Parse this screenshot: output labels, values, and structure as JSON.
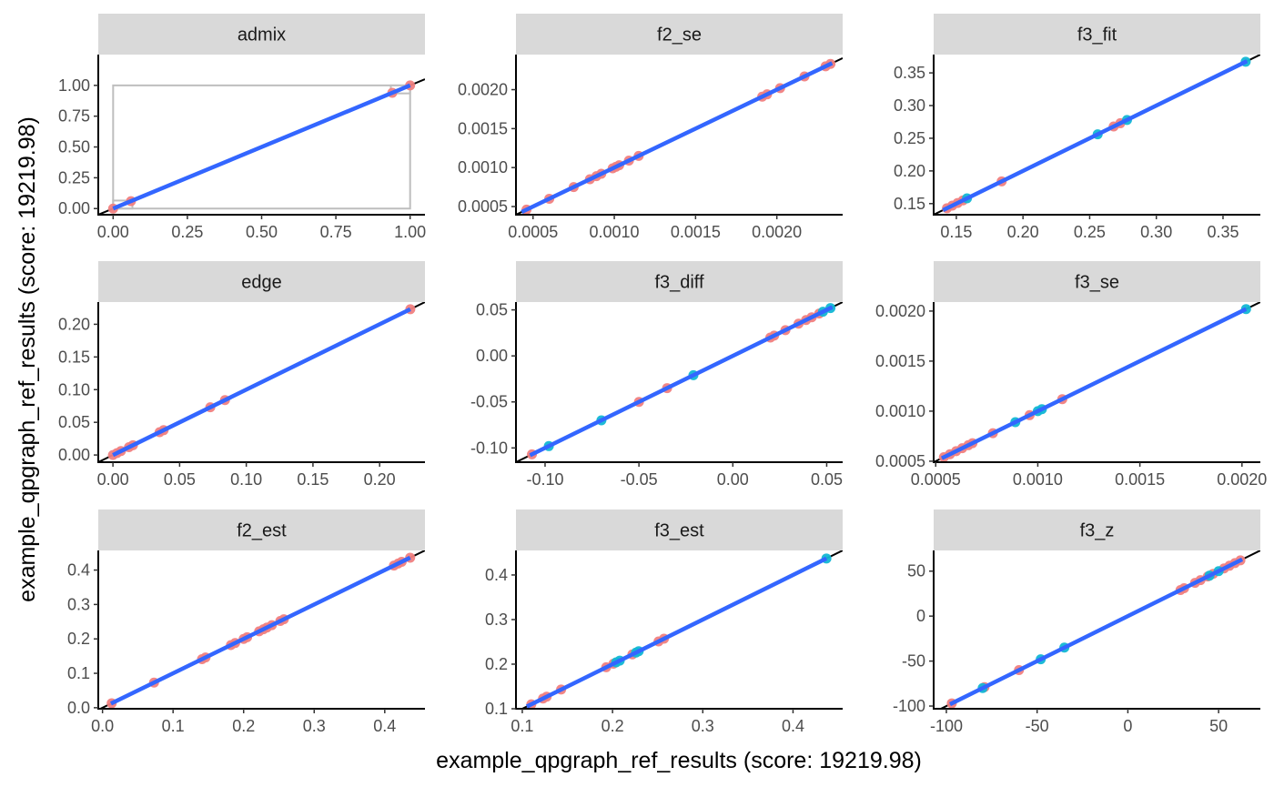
{
  "figure": {
    "xlabel": "example_qpgraph_ref_results (score: 19219.98)",
    "ylabel": "example_qpgraph_ref_results (score: 19219.98)"
  },
  "colors": {
    "point_red": "#F08080",
    "point_cyan": "#12B7D4",
    "fit_line": "#3366FF",
    "identity_line": "#000000",
    "strip_bg": "#D9D9D9",
    "rect": "#BEBEBE"
  },
  "chart_data": [
    {
      "type": "scatter",
      "title": "admix",
      "xlim": [
        -0.05,
        1.05
      ],
      "ylim": [
        -0.05,
        1.25
      ],
      "xticks": [
        0,
        0.25,
        0.5,
        0.75,
        1
      ],
      "xtick_labels": [
        "0.00",
        "0.25",
        "0.50",
        "0.75",
        "1.00"
      ],
      "yticks": [
        0,
        0.25,
        0.5,
        0.75,
        1
      ],
      "ytick_labels": [
        "0.00",
        "0.25",
        "0.50",
        "0.75",
        "1.00"
      ],
      "identity_line": true,
      "fit_line": [
        [
          0,
          0
        ],
        [
          1,
          1
        ]
      ],
      "rects": [
        {
          "x0": 0,
          "x1": 1,
          "y0": 0,
          "y1": 1
        },
        {
          "x0": 0,
          "x1": 0.065,
          "y0": 0,
          "y1": 0.065
        },
        {
          "x0": 0.935,
          "x1": 1,
          "y0": 0.935,
          "y1": 1
        }
      ],
      "points": [
        {
          "x": 0.0,
          "y": 0.0,
          "group": "red"
        },
        {
          "x": 0.06,
          "y": 0.06,
          "group": "red"
        },
        {
          "x": 0.94,
          "y": 0.94,
          "group": "red"
        },
        {
          "x": 1.0,
          "y": 1.0,
          "group": "red"
        }
      ]
    },
    {
      "type": "scatter",
      "title": "f2_se",
      "xlim": [
        0.000395,
        0.002405
      ],
      "ylim": [
        0.000395,
        0.00245
      ],
      "xticks": [
        0.0005,
        0.001,
        0.0015,
        0.002
      ],
      "xtick_labels": [
        "0.0005",
        "0.0010",
        "0.0015",
        "0.0020"
      ],
      "yticks": [
        0.0005,
        0.001,
        0.0015,
        0.002
      ],
      "ytick_labels": [
        "0.0005",
        "0.0010",
        "0.0015",
        "0.0020"
      ],
      "identity_line": true,
      "fit_line": [
        [
          0.00043,
          0.00043
        ],
        [
          0.00234,
          0.00234
        ]
      ],
      "points": [
        {
          "x": 0.00046,
          "y": 0.00046,
          "group": "red"
        },
        {
          "x": 0.0006,
          "y": 0.0006,
          "group": "red"
        },
        {
          "x": 0.00075,
          "y": 0.00075,
          "group": "red"
        },
        {
          "x": 0.00085,
          "y": 0.00085,
          "group": "red"
        },
        {
          "x": 0.00089,
          "y": 0.00089,
          "group": "red"
        },
        {
          "x": 0.00092,
          "y": 0.00092,
          "group": "red"
        },
        {
          "x": 0.00099,
          "y": 0.00099,
          "group": "red"
        },
        {
          "x": 0.00101,
          "y": 0.00101,
          "group": "red"
        },
        {
          "x": 0.00103,
          "y": 0.00103,
          "group": "red"
        },
        {
          "x": 0.00109,
          "y": 0.00109,
          "group": "red"
        },
        {
          "x": 0.00115,
          "y": 0.00115,
          "group": "red"
        },
        {
          "x": 0.00191,
          "y": 0.00191,
          "group": "red"
        },
        {
          "x": 0.00194,
          "y": 0.00194,
          "group": "red"
        },
        {
          "x": 0.00202,
          "y": 0.00202,
          "group": "red"
        },
        {
          "x": 0.00217,
          "y": 0.00217,
          "group": "red"
        },
        {
          "x": 0.0023,
          "y": 0.0023,
          "group": "red"
        },
        {
          "x": 0.00233,
          "y": 0.00233,
          "group": "red"
        }
      ]
    },
    {
      "type": "scatter",
      "title": "f3_fit",
      "xlim": [
        0.133,
        0.378
      ],
      "ylim": [
        0.133,
        0.378
      ],
      "xticks": [
        0.15,
        0.2,
        0.25,
        0.3,
        0.35
      ],
      "xtick_labels": [
        "0.15",
        "0.20",
        "0.25",
        "0.30",
        "0.35"
      ],
      "yticks": [
        0.15,
        0.2,
        0.25,
        0.3,
        0.35
      ],
      "ytick_labels": [
        "0.15",
        "0.20",
        "0.25",
        "0.30",
        "0.35"
      ],
      "identity_line": true,
      "fit_line": [
        [
          0.14,
          0.14
        ],
        [
          0.368,
          0.368
        ]
      ],
      "points": [
        {
          "x": 0.143,
          "y": 0.143,
          "group": "red"
        },
        {
          "x": 0.147,
          "y": 0.147,
          "group": "red"
        },
        {
          "x": 0.151,
          "y": 0.151,
          "group": "red"
        },
        {
          "x": 0.155,
          "y": 0.155,
          "group": "red"
        },
        {
          "x": 0.184,
          "y": 0.184,
          "group": "red"
        },
        {
          "x": 0.268,
          "y": 0.268,
          "group": "red"
        },
        {
          "x": 0.273,
          "y": 0.273,
          "group": "red"
        },
        {
          "x": 0.158,
          "y": 0.158,
          "group": "cyan"
        },
        {
          "x": 0.256,
          "y": 0.256,
          "group": "cyan"
        },
        {
          "x": 0.278,
          "y": 0.278,
          "group": "cyan"
        },
        {
          "x": 0.367,
          "y": 0.367,
          "group": "cyan"
        }
      ]
    },
    {
      "type": "scatter",
      "title": "edge",
      "xlim": [
        -0.011,
        0.234
      ],
      "ylim": [
        -0.011,
        0.234
      ],
      "xticks": [
        0,
        0.05,
        0.1,
        0.15,
        0.2
      ],
      "xtick_labels": [
        "0.00",
        "0.05",
        "0.10",
        "0.15",
        "0.20"
      ],
      "yticks": [
        0,
        0.05,
        0.1,
        0.15,
        0.2
      ],
      "ytick_labels": [
        "0.00",
        "0.05",
        "0.10",
        "0.15",
        "0.20"
      ],
      "identity_line": true,
      "fit_line": [
        [
          0,
          0
        ],
        [
          0.223,
          0.223
        ]
      ],
      "points": [
        {
          "x": 0.0,
          "y": 0.0,
          "group": "red"
        },
        {
          "x": 0.003,
          "y": 0.003,
          "group": "red"
        },
        {
          "x": 0.006,
          "y": 0.006,
          "group": "red"
        },
        {
          "x": 0.012,
          "y": 0.012,
          "group": "red"
        },
        {
          "x": 0.015,
          "y": 0.015,
          "group": "red"
        },
        {
          "x": 0.035,
          "y": 0.035,
          "group": "red"
        },
        {
          "x": 0.038,
          "y": 0.038,
          "group": "red"
        },
        {
          "x": 0.073,
          "y": 0.073,
          "group": "red"
        },
        {
          "x": 0.084,
          "y": 0.084,
          "group": "red"
        },
        {
          "x": 0.223,
          "y": 0.223,
          "group": "red"
        }
      ]
    },
    {
      "type": "scatter",
      "title": "f3_diff",
      "xlim": [
        -0.1155,
        0.0585
      ],
      "ylim": [
        -0.1155,
        0.0585
      ],
      "xticks": [
        -0.1,
        -0.05,
        0,
        0.05
      ],
      "xtick_labels": [
        "-0.10",
        "-0.05",
        "0.00",
        "0.05"
      ],
      "yticks": [
        -0.1,
        -0.05,
        0,
        0.05
      ],
      "ytick_labels": [
        "-0.10",
        "-0.05",
        "0.00",
        "0.05"
      ],
      "identity_line": true,
      "fit_line": [
        [
          -0.108,
          -0.108
        ],
        [
          0.053,
          0.053
        ]
      ],
      "points": [
        {
          "x": -0.107,
          "y": -0.107,
          "group": "red"
        },
        {
          "x": -0.05,
          "y": -0.05,
          "group": "red"
        },
        {
          "x": -0.035,
          "y": -0.035,
          "group": "red"
        },
        {
          "x": 0.02,
          "y": 0.02,
          "group": "red"
        },
        {
          "x": 0.022,
          "y": 0.022,
          "group": "red"
        },
        {
          "x": 0.028,
          "y": 0.028,
          "group": "red"
        },
        {
          "x": 0.035,
          "y": 0.035,
          "group": "red"
        },
        {
          "x": 0.039,
          "y": 0.039,
          "group": "red"
        },
        {
          "x": 0.042,
          "y": 0.042,
          "group": "red"
        },
        {
          "x": 0.046,
          "y": 0.046,
          "group": "red"
        },
        {
          "x": -0.098,
          "y": -0.098,
          "group": "cyan"
        },
        {
          "x": -0.07,
          "y": -0.07,
          "group": "cyan"
        },
        {
          "x": -0.021,
          "y": -0.021,
          "group": "cyan"
        },
        {
          "x": 0.048,
          "y": 0.048,
          "group": "cyan"
        },
        {
          "x": 0.052,
          "y": 0.052,
          "group": "cyan"
        }
      ]
    },
    {
      "type": "scatter",
      "title": "f3_se",
      "xlim": [
        0.00049,
        0.00209
      ],
      "ylim": [
        0.00049,
        0.00209
      ],
      "xticks": [
        0.0005,
        0.001,
        0.0015,
        0.002
      ],
      "xtick_labels": [
        "0.0005",
        "0.0010",
        "0.0015",
        "0.0020"
      ],
      "yticks": [
        0.0005,
        0.001,
        0.0015,
        0.002
      ],
      "ytick_labels": [
        "0.0005",
        "0.0010",
        "0.0015",
        "0.0020"
      ],
      "identity_line": true,
      "fit_line": [
        [
          0.00053,
          0.00053
        ],
        [
          0.00202,
          0.00202
        ]
      ],
      "points": [
        {
          "x": 0.00054,
          "y": 0.00054,
          "group": "red"
        },
        {
          "x": 0.00057,
          "y": 0.00057,
          "group": "red"
        },
        {
          "x": 0.0006,
          "y": 0.0006,
          "group": "red"
        },
        {
          "x": 0.00063,
          "y": 0.00063,
          "group": "red"
        },
        {
          "x": 0.00066,
          "y": 0.00066,
          "group": "red"
        },
        {
          "x": 0.00068,
          "y": 0.00068,
          "group": "red"
        },
        {
          "x": 0.00078,
          "y": 0.00078,
          "group": "red"
        },
        {
          "x": 0.00096,
          "y": 0.00096,
          "group": "red"
        },
        {
          "x": 0.00112,
          "y": 0.00112,
          "group": "red"
        },
        {
          "x": 0.00089,
          "y": 0.00089,
          "group": "cyan"
        },
        {
          "x": 0.001,
          "y": 0.001,
          "group": "cyan"
        },
        {
          "x": 0.00102,
          "y": 0.00102,
          "group": "cyan"
        },
        {
          "x": 0.00202,
          "y": 0.00202,
          "group": "cyan"
        }
      ]
    },
    {
      "type": "scatter",
      "title": "f2_est",
      "xlim": [
        -0.006,
        0.457
      ],
      "ylim": [
        -0.003,
        0.457
      ],
      "xticks": [
        0,
        0.1,
        0.2,
        0.3,
        0.4
      ],
      "xtick_labels": [
        "0.0",
        "0.1",
        "0.2",
        "0.3",
        "0.4"
      ],
      "yticks": [
        0,
        0.1,
        0.2,
        0.3,
        0.4
      ],
      "ytick_labels": [
        "0.0",
        "0.1",
        "0.2",
        "0.3",
        "0.4"
      ],
      "identity_line": true,
      "fit_line": [
        [
          0.012,
          0.012
        ],
        [
          0.436,
          0.436
        ]
      ],
      "points": [
        {
          "x": 0.013,
          "y": 0.013,
          "group": "red"
        },
        {
          "x": 0.073,
          "y": 0.073,
          "group": "red"
        },
        {
          "x": 0.141,
          "y": 0.141,
          "group": "red"
        },
        {
          "x": 0.146,
          "y": 0.146,
          "group": "red"
        },
        {
          "x": 0.182,
          "y": 0.182,
          "group": "red"
        },
        {
          "x": 0.188,
          "y": 0.188,
          "group": "red"
        },
        {
          "x": 0.2,
          "y": 0.2,
          "group": "red"
        },
        {
          "x": 0.205,
          "y": 0.205,
          "group": "red"
        },
        {
          "x": 0.222,
          "y": 0.222,
          "group": "red"
        },
        {
          "x": 0.228,
          "y": 0.228,
          "group": "red"
        },
        {
          "x": 0.233,
          "y": 0.233,
          "group": "red"
        },
        {
          "x": 0.24,
          "y": 0.24,
          "group": "red"
        },
        {
          "x": 0.252,
          "y": 0.252,
          "group": "red"
        },
        {
          "x": 0.257,
          "y": 0.257,
          "group": "red"
        },
        {
          "x": 0.413,
          "y": 0.413,
          "group": "red"
        },
        {
          "x": 0.419,
          "y": 0.419,
          "group": "red"
        },
        {
          "x": 0.424,
          "y": 0.424,
          "group": "red"
        },
        {
          "x": 0.436,
          "y": 0.436,
          "group": "red"
        }
      ]
    },
    {
      "type": "scatter",
      "title": "f3_est",
      "xlim": [
        0.093,
        0.455
      ],
      "ylim": [
        0.1,
        0.455
      ],
      "xticks": [
        0.1,
        0.2,
        0.3,
        0.4
      ],
      "xtick_labels": [
        "0.1",
        "0.2",
        "0.3",
        "0.4"
      ],
      "yticks": [
        0.1,
        0.2,
        0.3,
        0.4
      ],
      "ytick_labels": [
        "0.1",
        "0.2",
        "0.3",
        "0.4"
      ],
      "identity_line": true,
      "fit_line": [
        [
          0.105,
          0.105
        ],
        [
          0.437,
          0.437
        ]
      ],
      "points": [
        {
          "x": 0.11,
          "y": 0.11,
          "group": "red"
        },
        {
          "x": 0.123,
          "y": 0.123,
          "group": "red"
        },
        {
          "x": 0.127,
          "y": 0.127,
          "group": "red"
        },
        {
          "x": 0.143,
          "y": 0.143,
          "group": "red"
        },
        {
          "x": 0.193,
          "y": 0.193,
          "group": "red"
        },
        {
          "x": 0.201,
          "y": 0.201,
          "group": "red"
        },
        {
          "x": 0.222,
          "y": 0.222,
          "group": "red"
        },
        {
          "x": 0.251,
          "y": 0.251,
          "group": "red"
        },
        {
          "x": 0.257,
          "y": 0.257,
          "group": "red"
        },
        {
          "x": 0.204,
          "y": 0.204,
          "group": "cyan"
        },
        {
          "x": 0.208,
          "y": 0.208,
          "group": "cyan"
        },
        {
          "x": 0.226,
          "y": 0.226,
          "group": "cyan"
        },
        {
          "x": 0.229,
          "y": 0.229,
          "group": "cyan"
        },
        {
          "x": 0.437,
          "y": 0.437,
          "group": "cyan"
        }
      ]
    },
    {
      "type": "scatter",
      "title": "f3_z",
      "xlim": [
        -107,
        73
      ],
      "ylim": [
        -103,
        73
      ],
      "xticks": [
        -100,
        -50,
        0,
        50
      ],
      "xtick_labels": [
        "-100",
        "-50",
        "0",
        "50"
      ],
      "yticks": [
        -100,
        -50,
        0,
        50
      ],
      "ytick_labels": [
        "-100",
        "-50",
        "0",
        "50"
      ],
      "identity_line": true,
      "fit_line": [
        [
          -98,
          -98
        ],
        [
          63,
          63
        ]
      ],
      "points": [
        {
          "x": -97,
          "y": -97,
          "group": "red"
        },
        {
          "x": -79,
          "y": -79,
          "group": "red"
        },
        {
          "x": -60,
          "y": -60,
          "group": "red"
        },
        {
          "x": 29,
          "y": 29,
          "group": "red"
        },
        {
          "x": 31,
          "y": 31,
          "group": "red"
        },
        {
          "x": 37,
          "y": 37,
          "group": "red"
        },
        {
          "x": 40,
          "y": 40,
          "group": "red"
        },
        {
          "x": 44,
          "y": 44,
          "group": "red"
        },
        {
          "x": 47,
          "y": 47,
          "group": "red"
        },
        {
          "x": 53,
          "y": 53,
          "group": "red"
        },
        {
          "x": 56,
          "y": 56,
          "group": "red"
        },
        {
          "x": 59,
          "y": 59,
          "group": "red"
        },
        {
          "x": 62,
          "y": 62,
          "group": "red"
        },
        {
          "x": -80,
          "y": -80,
          "group": "cyan"
        },
        {
          "x": -48,
          "y": -48,
          "group": "cyan"
        },
        {
          "x": -35,
          "y": -35,
          "group": "cyan"
        },
        {
          "x": 45,
          "y": 45,
          "group": "cyan"
        },
        {
          "x": 50,
          "y": 50,
          "group": "cyan"
        }
      ]
    }
  ]
}
